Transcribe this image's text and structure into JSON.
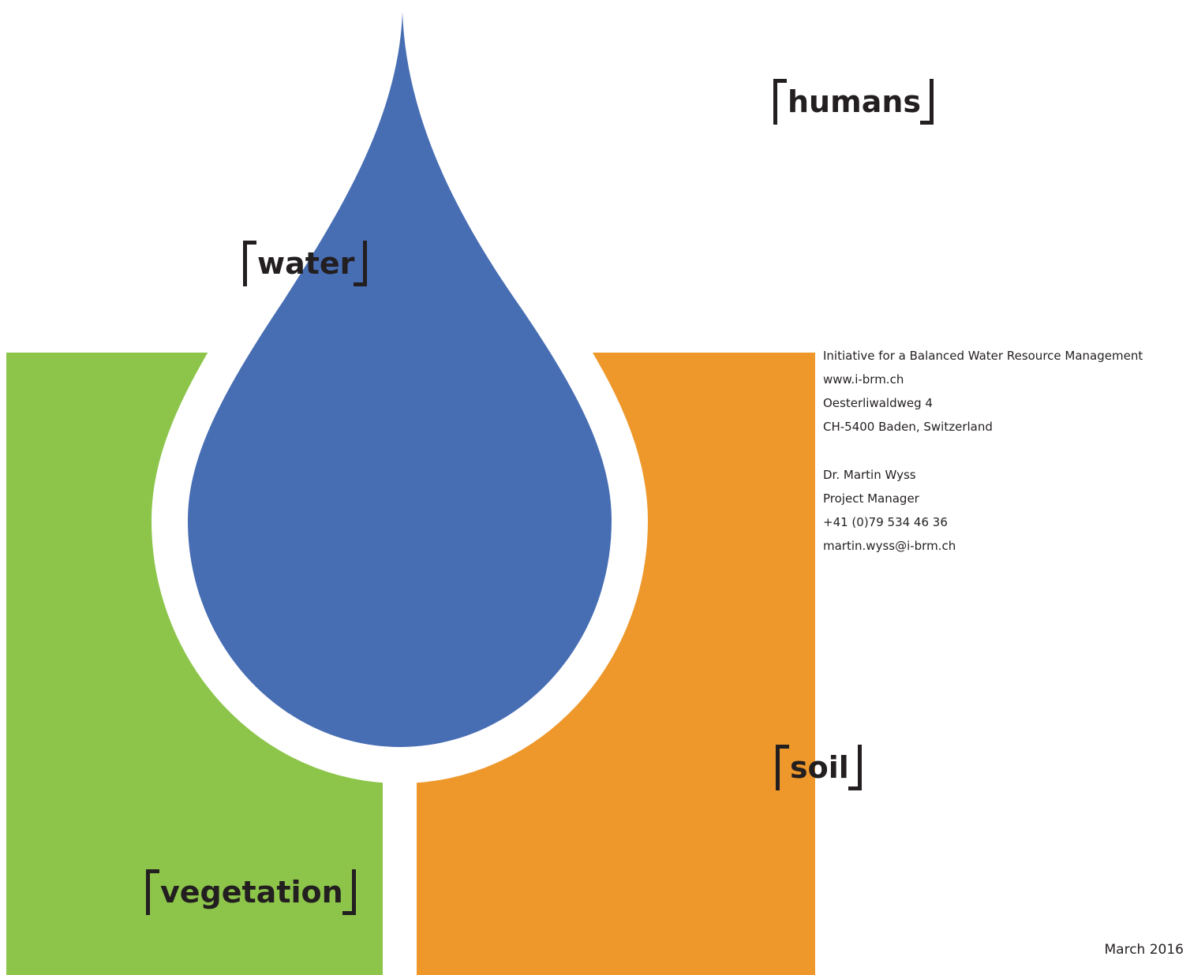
{
  "labels": {
    "humans": "humans",
    "water": "water",
    "soil": "soil",
    "vegetation": "vegetation"
  },
  "organization": {
    "name": "Initiative for a Balanced Water Resource Management",
    "website": "www.i-brm.ch",
    "street": "Oesterliwaldweg 4",
    "city": "CH-5400 Baden, Switzerland"
  },
  "contact": {
    "name": "Dr. Martin Wyss",
    "role": "Project Manager",
    "phone": "+41 (0)79 534 46 36",
    "email": "martin.wyss@i-brm.ch"
  },
  "date": "March 2016"
}
